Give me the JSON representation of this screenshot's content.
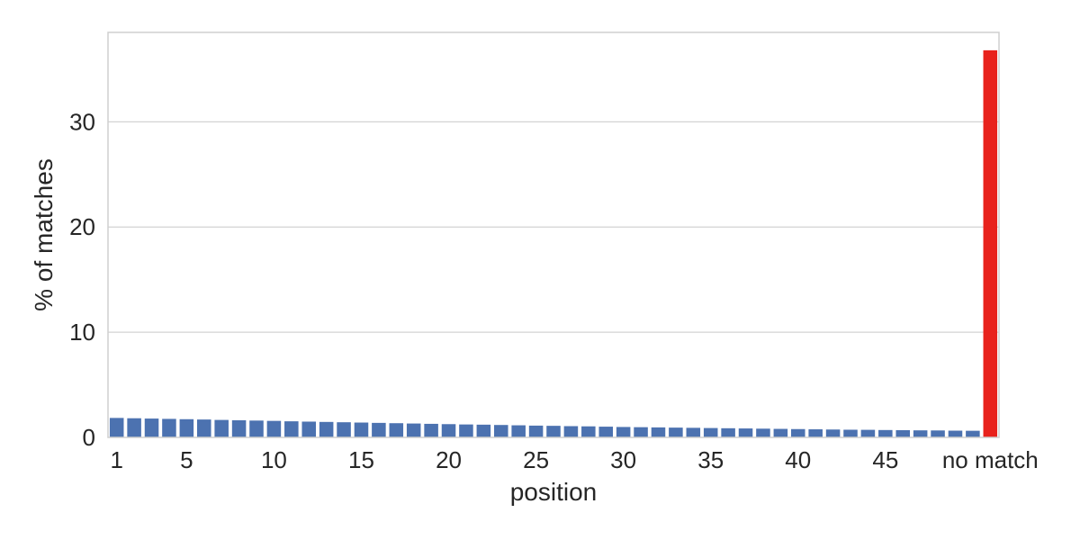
{
  "chart_data": {
    "type": "bar",
    "xlabel": "position",
    "ylabel": "% of matches",
    "ylim": [
      0,
      38.5
    ],
    "yticks": [
      0,
      10,
      20,
      30
    ],
    "xtick_labels": [
      "1",
      "5",
      "10",
      "15",
      "20",
      "25",
      "30",
      "35",
      "40",
      "45",
      "no match"
    ],
    "categories": [
      "1",
      "2",
      "3",
      "4",
      "5",
      "6",
      "7",
      "8",
      "9",
      "10",
      "11",
      "12",
      "13",
      "14",
      "15",
      "16",
      "17",
      "18",
      "19",
      "20",
      "21",
      "22",
      "23",
      "24",
      "25",
      "26",
      "27",
      "28",
      "29",
      "30",
      "31",
      "32",
      "33",
      "34",
      "35",
      "36",
      "37",
      "38",
      "39",
      "40",
      "41",
      "42",
      "43",
      "44",
      "45",
      "46",
      "47",
      "48",
      "49",
      "50",
      "no match"
    ],
    "values": [
      1.85,
      1.82,
      1.79,
      1.76,
      1.73,
      1.7,
      1.66,
      1.63,
      1.6,
      1.57,
      1.53,
      1.5,
      1.47,
      1.44,
      1.41,
      1.38,
      1.35,
      1.32,
      1.29,
      1.26,
      1.23,
      1.21,
      1.18,
      1.15,
      1.12,
      1.1,
      1.07,
      1.05,
      1.02,
      0.99,
      0.97,
      0.95,
      0.93,
      0.91,
      0.89,
      0.87,
      0.85,
      0.83,
      0.81,
      0.79,
      0.77,
      0.75,
      0.73,
      0.72,
      0.7,
      0.69,
      0.67,
      0.66,
      0.64,
      0.63,
      36.8
    ],
    "grid": true,
    "legend": "none",
    "colors": {
      "bar": "#4c72b0",
      "highlight": "#e8221c",
      "grid": "#d3d3d3",
      "frame": "#cfcfcf",
      "text": "#262626"
    }
  }
}
